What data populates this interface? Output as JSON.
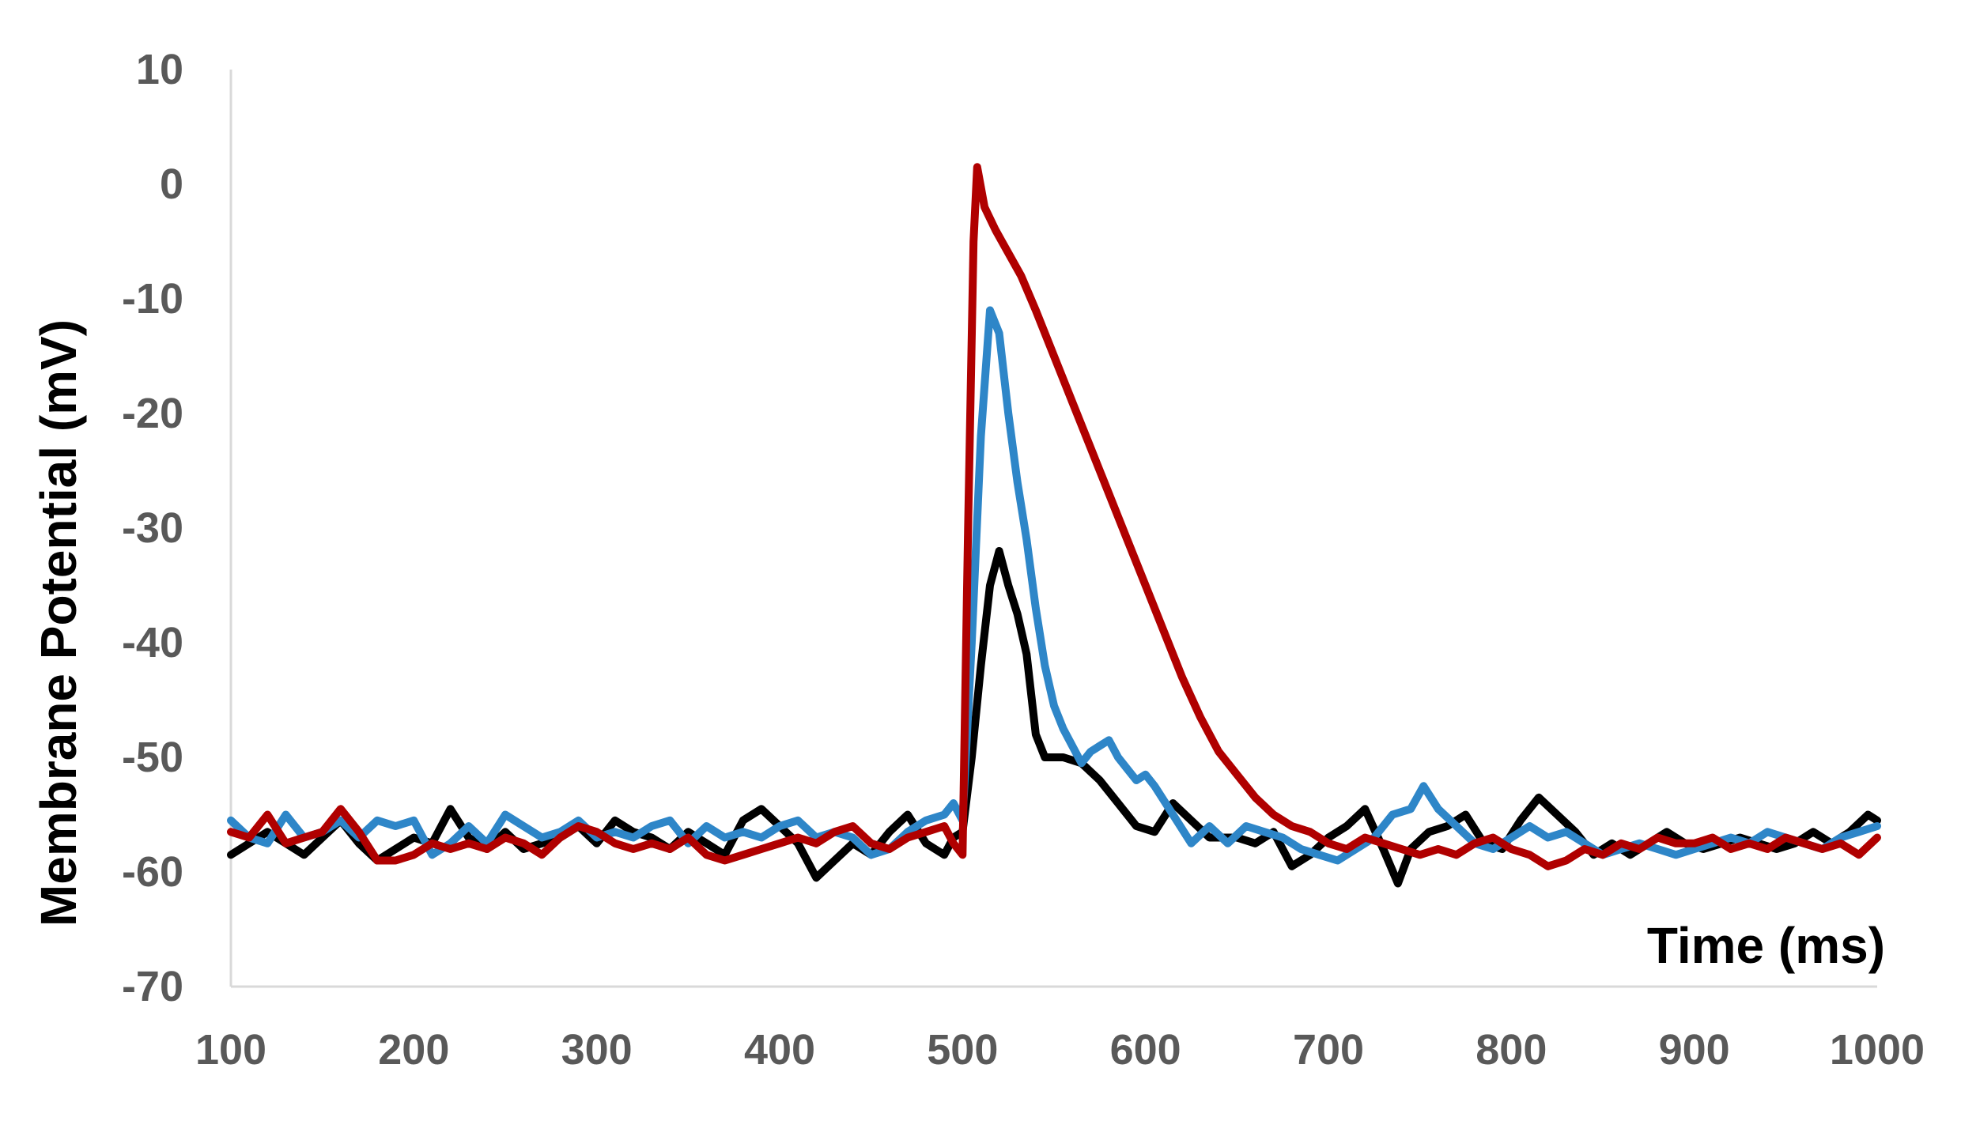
{
  "chart_data": {
    "type": "line",
    "title": "",
    "xlabel": "Time (ms)",
    "ylabel": "Membrane Potential (mV)",
    "xlim": [
      100,
      1000
    ],
    "ylim": [
      -70,
      10
    ],
    "xticks": [
      100,
      200,
      300,
      400,
      500,
      600,
      700,
      800,
      900,
      1000
    ],
    "yticks": [
      10,
      0,
      -10,
      -20,
      -30,
      -40,
      -50,
      -60,
      -70
    ],
    "xtick_labels": [
      "100",
      "200",
      "300",
      "400",
      "500",
      "600",
      "700",
      "800",
      "900",
      "1000"
    ],
    "ytick_labels": [
      "10",
      "0",
      "-10",
      "-20",
      "-30",
      "-40",
      "-50",
      "-60",
      "-70"
    ],
    "grid": false,
    "legend": "none",
    "series": [
      {
        "color": "#000000",
        "points": [
          [
            100,
            -58.5
          ],
          [
            110,
            -57.5
          ],
          [
            120,
            -56.5
          ],
          [
            130,
            -57.5
          ],
          [
            140,
            -58.5
          ],
          [
            150,
            -57
          ],
          [
            160,
            -55.5
          ],
          [
            170,
            -57.5
          ],
          [
            180,
            -59
          ],
          [
            190,
            -58
          ],
          [
            200,
            -57
          ],
          [
            210,
            -57.5
          ],
          [
            220,
            -54.5
          ],
          [
            230,
            -57
          ],
          [
            240,
            -58
          ],
          [
            250,
            -56.5
          ],
          [
            260,
            -58
          ],
          [
            270,
            -57.5
          ],
          [
            280,
            -57
          ],
          [
            290,
            -56
          ],
          [
            300,
            -57.5
          ],
          [
            310,
            -55.5
          ],
          [
            320,
            -56.5
          ],
          [
            330,
            -57
          ],
          [
            340,
            -58
          ],
          [
            350,
            -56.5
          ],
          [
            360,
            -57.5
          ],
          [
            370,
            -58.5
          ],
          [
            380,
            -55.5
          ],
          [
            390,
            -54.5
          ],
          [
            400,
            -56
          ],
          [
            410,
            -57.5
          ],
          [
            420,
            -60.5
          ],
          [
            430,
            -59
          ],
          [
            440,
            -57.5
          ],
          [
            450,
            -58.5
          ],
          [
            460,
            -56.5
          ],
          [
            470,
            -55
          ],
          [
            480,
            -57.5
          ],
          [
            490,
            -58.5
          ],
          [
            495,
            -57
          ],
          [
            500,
            -56.5
          ],
          [
            505,
            -50
          ],
          [
            510,
            -42
          ],
          [
            515,
            -35
          ],
          [
            520,
            -32
          ],
          [
            525,
            -35
          ],
          [
            530,
            -37.5
          ],
          [
            535,
            -41
          ],
          [
            540,
            -48
          ],
          [
            545,
            -50
          ],
          [
            555,
            -50
          ],
          [
            565,
            -50.5
          ],
          [
            575,
            -52
          ],
          [
            585,
            -54
          ],
          [
            595,
            -56
          ],
          [
            605,
            -56.5
          ],
          [
            615,
            -54
          ],
          [
            625,
            -55.5
          ],
          [
            635,
            -57
          ],
          [
            650,
            -57
          ],
          [
            660,
            -57.5
          ],
          [
            670,
            -56.5
          ],
          [
            680,
            -59.5
          ],
          [
            690,
            -58.5
          ],
          [
            700,
            -57
          ],
          [
            710,
            -56
          ],
          [
            720,
            -54.5
          ],
          [
            730,
            -58
          ],
          [
            738,
            -61
          ],
          [
            745,
            -58
          ],
          [
            755,
            -56.5
          ],
          [
            765,
            -56
          ],
          [
            775,
            -55
          ],
          [
            785,
            -57.5
          ],
          [
            795,
            -58
          ],
          [
            805,
            -55.5
          ],
          [
            815,
            -53.5
          ],
          [
            825,
            -55
          ],
          [
            835,
            -56.5
          ],
          [
            845,
            -58.5
          ],
          [
            855,
            -57.5
          ],
          [
            865,
            -58.5
          ],
          [
            875,
            -57.5
          ],
          [
            885,
            -56.5
          ],
          [
            895,
            -57.5
          ],
          [
            905,
            -58
          ],
          [
            915,
            -57.5
          ],
          [
            925,
            -57
          ],
          [
            935,
            -57.5
          ],
          [
            945,
            -58
          ],
          [
            955,
            -57.5
          ],
          [
            965,
            -56.5
          ],
          [
            975,
            -57.5
          ],
          [
            985,
            -56.5
          ],
          [
            995,
            -55
          ],
          [
            1000,
            -55.5
          ]
        ]
      },
      {
        "color": "#2e86c8",
        "points": [
          [
            100,
            -55.5
          ],
          [
            110,
            -57
          ],
          [
            120,
            -57.5
          ],
          [
            130,
            -55
          ],
          [
            140,
            -57
          ],
          [
            150,
            -56.5
          ],
          [
            160,
            -55.5
          ],
          [
            170,
            -57
          ],
          [
            180,
            -55.5
          ],
          [
            190,
            -56
          ],
          [
            200,
            -55.5
          ],
          [
            210,
            -58.5
          ],
          [
            220,
            -57.5
          ],
          [
            230,
            -56
          ],
          [
            240,
            -57.5
          ],
          [
            250,
            -55
          ],
          [
            260,
            -56
          ],
          [
            270,
            -57
          ],
          [
            280,
            -56.5
          ],
          [
            290,
            -55.5
          ],
          [
            300,
            -57
          ],
          [
            310,
            -56.5
          ],
          [
            320,
            -57
          ],
          [
            330,
            -56
          ],
          [
            340,
            -55.5
          ],
          [
            350,
            -57.5
          ],
          [
            360,
            -56
          ],
          [
            370,
            -57
          ],
          [
            380,
            -56.5
          ],
          [
            390,
            -57
          ],
          [
            400,
            -56
          ],
          [
            410,
            -55.5
          ],
          [
            420,
            -57
          ],
          [
            430,
            -56.5
          ],
          [
            440,
            -57
          ],
          [
            450,
            -58.5
          ],
          [
            460,
            -58
          ],
          [
            470,
            -56.5
          ],
          [
            480,
            -55.5
          ],
          [
            490,
            -55
          ],
          [
            495,
            -54
          ],
          [
            500,
            -55.5
          ],
          [
            505,
            -40
          ],
          [
            510,
            -22
          ],
          [
            515,
            -11
          ],
          [
            520,
            -13
          ],
          [
            525,
            -20
          ],
          [
            530,
            -26
          ],
          [
            535,
            -31
          ],
          [
            540,
            -37
          ],
          [
            545,
            -42
          ],
          [
            550,
            -45.5
          ],
          [
            555,
            -47.5
          ],
          [
            560,
            -49
          ],
          [
            565,
            -50.5
          ],
          [
            570,
            -49.5
          ],
          [
            575,
            -49
          ],
          [
            580,
            -48.5
          ],
          [
            585,
            -50
          ],
          [
            590,
            -51
          ],
          [
            595,
            -52
          ],
          [
            600,
            -51.5
          ],
          [
            605,
            -52.5
          ],
          [
            615,
            -55
          ],
          [
            625,
            -57.5
          ],
          [
            635,
            -56
          ],
          [
            645,
            -57.5
          ],
          [
            655,
            -56
          ],
          [
            665,
            -56.5
          ],
          [
            675,
            -57
          ],
          [
            685,
            -58
          ],
          [
            695,
            -58.5
          ],
          [
            705,
            -59
          ],
          [
            715,
            -58
          ],
          [
            725,
            -57
          ],
          [
            735,
            -55
          ],
          [
            745,
            -54.5
          ],
          [
            752,
            -52.5
          ],
          [
            760,
            -54.5
          ],
          [
            770,
            -56
          ],
          [
            780,
            -57.5
          ],
          [
            790,
            -58
          ],
          [
            800,
            -57
          ],
          [
            810,
            -56
          ],
          [
            820,
            -57
          ],
          [
            830,
            -56.5
          ],
          [
            840,
            -57.5
          ],
          [
            850,
            -58.5
          ],
          [
            860,
            -58
          ],
          [
            870,
            -57.5
          ],
          [
            880,
            -58
          ],
          [
            890,
            -58.5
          ],
          [
            900,
            -58
          ],
          [
            910,
            -57.5
          ],
          [
            920,
            -57
          ],
          [
            930,
            -57.5
          ],
          [
            940,
            -56.5
          ],
          [
            950,
            -57
          ],
          [
            960,
            -57.5
          ],
          [
            970,
            -58
          ],
          [
            980,
            -57
          ],
          [
            990,
            -56.5
          ],
          [
            1000,
            -56
          ]
        ]
      },
      {
        "color": "#b00000",
        "points": [
          [
            100,
            -56.5
          ],
          [
            110,
            -57
          ],
          [
            120,
            -55
          ],
          [
            130,
            -57.5
          ],
          [
            140,
            -57
          ],
          [
            150,
            -56.5
          ],
          [
            160,
            -54.5
          ],
          [
            170,
            -56.5
          ],
          [
            180,
            -59
          ],
          [
            190,
            -59
          ],
          [
            200,
            -58.5
          ],
          [
            210,
            -57.5
          ],
          [
            220,
            -58
          ],
          [
            230,
            -57.5
          ],
          [
            240,
            -58
          ],
          [
            250,
            -57
          ],
          [
            260,
            -57.5
          ],
          [
            270,
            -58.5
          ],
          [
            280,
            -57
          ],
          [
            290,
            -56
          ],
          [
            300,
            -56.5
          ],
          [
            310,
            -57.5
          ],
          [
            320,
            -58
          ],
          [
            330,
            -57.5
          ],
          [
            340,
            -58
          ],
          [
            350,
            -57
          ],
          [
            360,
            -58.5
          ],
          [
            370,
            -59
          ],
          [
            380,
            -58.5
          ],
          [
            390,
            -58
          ],
          [
            400,
            -57.5
          ],
          [
            410,
            -57
          ],
          [
            420,
            -57.5
          ],
          [
            430,
            -56.5
          ],
          [
            440,
            -56
          ],
          [
            450,
            -57.5
          ],
          [
            460,
            -58
          ],
          [
            470,
            -57
          ],
          [
            480,
            -56.5
          ],
          [
            490,
            -56
          ],
          [
            495,
            -57.5
          ],
          [
            500,
            -58.5
          ],
          [
            503,
            -30
          ],
          [
            506,
            -5
          ],
          [
            508,
            1.5
          ],
          [
            512,
            -2
          ],
          [
            518,
            -4
          ],
          [
            525,
            -6
          ],
          [
            532,
            -8
          ],
          [
            540,
            -11
          ],
          [
            550,
            -15
          ],
          [
            560,
            -19
          ],
          [
            570,
            -23
          ],
          [
            580,
            -27
          ],
          [
            590,
            -31
          ],
          [
            600,
            -35
          ],
          [
            610,
            -39
          ],
          [
            620,
            -43
          ],
          [
            630,
            -46.5
          ],
          [
            640,
            -49.5
          ],
          [
            650,
            -51.5
          ],
          [
            660,
            -53.5
          ],
          [
            670,
            -55
          ],
          [
            680,
            -56
          ],
          [
            690,
            -56.5
          ],
          [
            700,
            -57.5
          ],
          [
            710,
            -58
          ],
          [
            720,
            -57
          ],
          [
            730,
            -57.5
          ],
          [
            740,
            -58
          ],
          [
            750,
            -58.5
          ],
          [
            760,
            -58
          ],
          [
            770,
            -58.5
          ],
          [
            780,
            -57.5
          ],
          [
            790,
            -57
          ],
          [
            800,
            -58
          ],
          [
            810,
            -58.5
          ],
          [
            820,
            -59.5
          ],
          [
            830,
            -59
          ],
          [
            840,
            -58
          ],
          [
            850,
            -58.5
          ],
          [
            860,
            -57.5
          ],
          [
            870,
            -58
          ],
          [
            880,
            -57
          ],
          [
            890,
            -57.5
          ],
          [
            900,
            -57.5
          ],
          [
            910,
            -57
          ],
          [
            920,
            -58
          ],
          [
            930,
            -57.5
          ],
          [
            940,
            -58
          ],
          [
            950,
            -57
          ],
          [
            960,
            -57.5
          ],
          [
            970,
            -58
          ],
          [
            980,
            -57.5
          ],
          [
            990,
            -58.5
          ],
          [
            1000,
            -57
          ]
        ]
      }
    ]
  }
}
